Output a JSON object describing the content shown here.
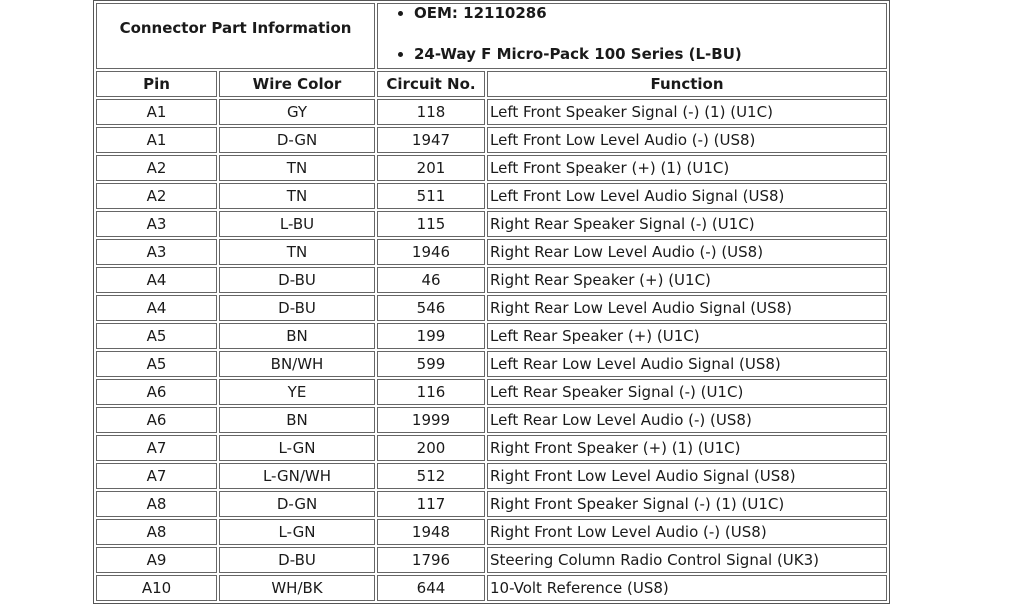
{
  "connector_info": {
    "label": "Connector Part Information",
    "items": [
      "OEM: 12110286",
      "24-Way F Micro-Pack 100 Series (L-BU)"
    ]
  },
  "columns": [
    "Pin",
    "Wire Color",
    "Circuit No.",
    "Function"
  ],
  "rows": [
    [
      "A1",
      "GY",
      "118",
      "Left Front Speaker Signal (-) (1) (U1C)"
    ],
    [
      "A1",
      "D-GN",
      "1947",
      "Left Front Low Level Audio (-) (US8)"
    ],
    [
      "A2",
      "TN",
      "201",
      "Left Front Speaker (+) (1) (U1C)"
    ],
    [
      "A2",
      "TN",
      "511",
      "Left Front Low Level Audio Signal (US8)"
    ],
    [
      "A3",
      "L-BU",
      "115",
      "Right Rear Speaker Signal (-) (U1C)"
    ],
    [
      "A3",
      "TN",
      "1946",
      "Right Rear Low Level Audio (-) (US8)"
    ],
    [
      "A4",
      "D-BU",
      "46",
      "Right Rear Speaker (+) (U1C)"
    ],
    [
      "A4",
      "D-BU",
      "546",
      "Right Rear Low Level Audio Signal (US8)"
    ],
    [
      "A5",
      "BN",
      "199",
      "Left Rear Speaker (+) (U1C)"
    ],
    [
      "A5",
      "BN/WH",
      "599",
      "Left Rear Low Level Audio Signal (US8)"
    ],
    [
      "A6",
      "YE",
      "116",
      "Left Rear Speaker Signal (-) (U1C)"
    ],
    [
      "A6",
      "BN",
      "1999",
      "Left Rear Low Level Audio (-) (US8)"
    ],
    [
      "A7",
      "L-GN",
      "200",
      "Right Front Speaker (+) (1) (U1C)"
    ],
    [
      "A7",
      "L-GN/WH",
      "512",
      "Right Front Low Level Audio Signal (US8)"
    ],
    [
      "A8",
      "D-GN",
      "117",
      "Right Front Speaker Signal (-) (1) (U1C)"
    ],
    [
      "A8",
      "L-GN",
      "1948",
      "Right Front Low Level Audio (-) (US8)"
    ],
    [
      "A9",
      "D-BU",
      "1796",
      "Steering Column Radio Control Signal (UK3)"
    ],
    [
      "A10",
      "WH/BK",
      "644",
      "10-Volt Reference (US8)"
    ]
  ]
}
